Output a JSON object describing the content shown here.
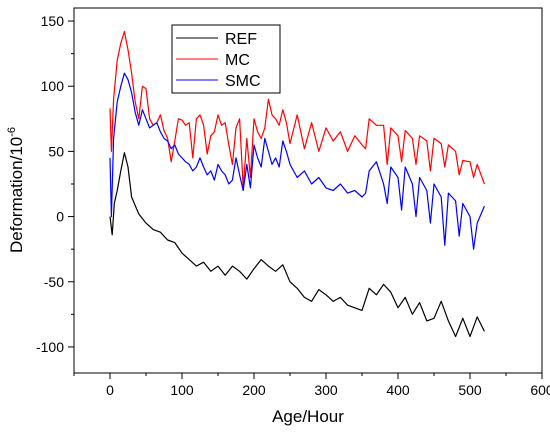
{
  "chart_data": {
    "type": "line",
    "xlabel": "Age/Hour",
    "ylabel_base": "Deformation/10",
    "ylabel_exp": "-6",
    "xlim": [
      -50,
      600
    ],
    "ylim": [
      -120,
      160
    ],
    "xticks": [
      0,
      100,
      200,
      300,
      400,
      500,
      600
    ],
    "yticks": [
      -100,
      -50,
      0,
      50,
      100,
      150
    ],
    "grid": false,
    "legend_position": "top-left",
    "series": [
      {
        "name": "REF",
        "color": "#000000",
        "x": [
          0,
          3,
          6,
          10,
          15,
          20,
          25,
          30,
          40,
          50,
          60,
          70,
          80,
          90,
          100,
          110,
          120,
          130,
          140,
          150,
          160,
          170,
          180,
          190,
          200,
          210,
          220,
          230,
          240,
          250,
          260,
          270,
          280,
          290,
          300,
          310,
          320,
          330,
          340,
          350,
          360,
          370,
          380,
          390,
          400,
          410,
          420,
          430,
          440,
          450,
          460,
          470,
          480,
          490,
          500,
          510,
          520
        ],
        "values": [
          0,
          -14,
          10,
          20,
          35,
          49,
          38,
          15,
          2,
          -5,
          -10,
          -12,
          -18,
          -20,
          -28,
          -33,
          -38,
          -35,
          -42,
          -38,
          -45,
          -38,
          -42,
          -48,
          -40,
          -33,
          -38,
          -42,
          -37,
          -50,
          -55,
          -62,
          -65,
          -56,
          -60,
          -65,
          -62,
          -68,
          -70,
          -72,
          -55,
          -60,
          -52,
          -58,
          -70,
          -62,
          -75,
          -66,
          -80,
          -78,
          -65,
          -80,
          -92,
          -78,
          -92,
          -77,
          -88
        ]
      },
      {
        "name": "MC",
        "color": "#ff0000",
        "x": [
          0,
          2,
          5,
          10,
          15,
          20,
          25,
          30,
          35,
          40,
          45,
          50,
          55,
          60,
          65,
          70,
          75,
          80,
          85,
          90,
          95,
          100,
          105,
          110,
          115,
          120,
          125,
          130,
          135,
          140,
          145,
          150,
          155,
          160,
          165,
          170,
          175,
          180,
          185,
          190,
          195,
          200,
          205,
          210,
          215,
          220,
          225,
          230,
          235,
          240,
          245,
          250,
          260,
          270,
          280,
          290,
          300,
          310,
          320,
          330,
          340,
          350,
          355,
          360,
          370,
          380,
          385,
          390,
          400,
          405,
          410,
          420,
          425,
          430,
          440,
          445,
          450,
          460,
          465,
          470,
          480,
          485,
          490,
          500,
          505,
          510,
          520
        ],
        "values": [
          83,
          50,
          90,
          120,
          133,
          142,
          128,
          110,
          88,
          75,
          100,
          98,
          75,
          70,
          72,
          78,
          66,
          60,
          42,
          58,
          75,
          74,
          70,
          72,
          45,
          75,
          78,
          70,
          48,
          62,
          65,
          78,
          70,
          72,
          55,
          40,
          68,
          75,
          22,
          60,
          30,
          75,
          65,
          60,
          68,
          90,
          78,
          75,
          70,
          82,
          72,
          56,
          78,
          52,
          72,
          50,
          68,
          58,
          65,
          50,
          62,
          55,
          52,
          75,
          70,
          70,
          40,
          68,
          62,
          42,
          66,
          60,
          40,
          62,
          58,
          35,
          60,
          56,
          38,
          55,
          50,
          32,
          43,
          42,
          30,
          40,
          25
        ]
      },
      {
        "name": "SMC",
        "color": "#0000ff",
        "x": [
          0,
          2,
          5,
          10,
          15,
          20,
          25,
          30,
          35,
          40,
          45,
          50,
          55,
          60,
          65,
          70,
          75,
          80,
          85,
          90,
          95,
          100,
          105,
          110,
          115,
          120,
          125,
          130,
          135,
          140,
          145,
          150,
          155,
          160,
          165,
          170,
          175,
          180,
          185,
          190,
          195,
          200,
          205,
          210,
          215,
          220,
          225,
          230,
          235,
          240,
          245,
          250,
          260,
          270,
          280,
          290,
          300,
          310,
          320,
          330,
          340,
          350,
          355,
          360,
          370,
          380,
          385,
          390,
          400,
          405,
          410,
          420,
          425,
          430,
          440,
          445,
          450,
          460,
          465,
          470,
          480,
          485,
          490,
          500,
          505,
          510,
          520
        ],
        "values": [
          45,
          0,
          60,
          88,
          100,
          110,
          105,
          95,
          80,
          70,
          82,
          75,
          68,
          70,
          72,
          65,
          60,
          58,
          52,
          55,
          48,
          45,
          42,
          40,
          35,
          38,
          45,
          38,
          32,
          35,
          28,
          40,
          35,
          32,
          25,
          28,
          45,
          32,
          20,
          40,
          22,
          55,
          45,
          38,
          60,
          50,
          40,
          45,
          38,
          58,
          50,
          40,
          30,
          35,
          25,
          30,
          22,
          20,
          25,
          18,
          20,
          15,
          18,
          35,
          42,
          25,
          10,
          38,
          30,
          5,
          38,
          25,
          0,
          30,
          20,
          -5,
          25,
          15,
          -22,
          18,
          12,
          -15,
          10,
          0,
          -25,
          -5,
          8
        ]
      }
    ]
  }
}
